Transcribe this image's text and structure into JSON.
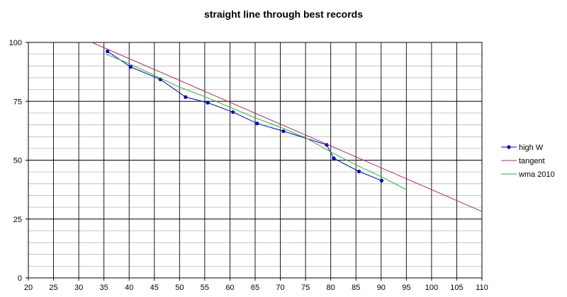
{
  "chart_data": {
    "type": "line",
    "title": "straight line through best records",
    "xlabel": "",
    "ylabel": "",
    "xlim": [
      20,
      110
    ],
    "ylim": [
      0,
      100
    ],
    "x_ticks": [
      20,
      25,
      30,
      35,
      40,
      45,
      50,
      55,
      60,
      65,
      70,
      75,
      80,
      85,
      90,
      95,
      100,
      105,
      110
    ],
    "y_ticks": [
      0,
      25,
      50,
      75,
      100
    ],
    "x_ticks_labels": [
      "20",
      "25",
      "30",
      "35",
      "40",
      "45",
      "50",
      "55",
      "60",
      "65",
      "70",
      "75",
      "80",
      "85",
      "90",
      "95",
      "100",
      "105",
      "110"
    ],
    "y_ticks_labels": [
      "0",
      "25",
      "50",
      "75",
      "100"
    ],
    "grid": true,
    "legend_position": "right",
    "series": [
      {
        "name": "high W",
        "color": "#0000cc",
        "markers": true,
        "points": [
          {
            "x": 35.7,
            "y": 96.2
          },
          {
            "x": 40.3,
            "y": 89.6
          },
          {
            "x": 46.2,
            "y": 84.3
          },
          {
            "x": 51.2,
            "y": 76.8
          },
          {
            "x": 55.6,
            "y": 74.4
          },
          {
            "x": 60.6,
            "y": 70.4
          },
          {
            "x": 65.4,
            "y": 65.6
          },
          {
            "x": 70.6,
            "y": 62.3
          },
          {
            "x": 79.2,
            "y": 56.5
          },
          {
            "x": 80.6,
            "y": 50.8
          },
          {
            "x": 85.6,
            "y": 45.2
          },
          {
            "x": 90.1,
            "y": 41.3
          }
        ]
      },
      {
        "name": "tangent",
        "color": "#b03060",
        "markers": false,
        "points": [
          {
            "x": 32.6,
            "y": 100
          },
          {
            "x": 110,
            "y": 28.2
          }
        ]
      },
      {
        "name": "wma 2010",
        "color": "#22bb22",
        "markers": false,
        "points": [
          {
            "x": 35.4,
            "y": 95
          },
          {
            "x": 40,
            "y": 91
          },
          {
            "x": 45,
            "y": 86
          },
          {
            "x": 50,
            "y": 81
          },
          {
            "x": 55,
            "y": 77
          },
          {
            "x": 60,
            "y": 72.5
          },
          {
            "x": 65,
            "y": 68
          },
          {
            "x": 70,
            "y": 64
          },
          {
            "x": 75,
            "y": 59.5
          },
          {
            "x": 80,
            "y": 53.5
          },
          {
            "x": 85,
            "y": 48
          },
          {
            "x": 90,
            "y": 43
          },
          {
            "x": 95,
            "y": 37.5
          }
        ]
      }
    ]
  }
}
